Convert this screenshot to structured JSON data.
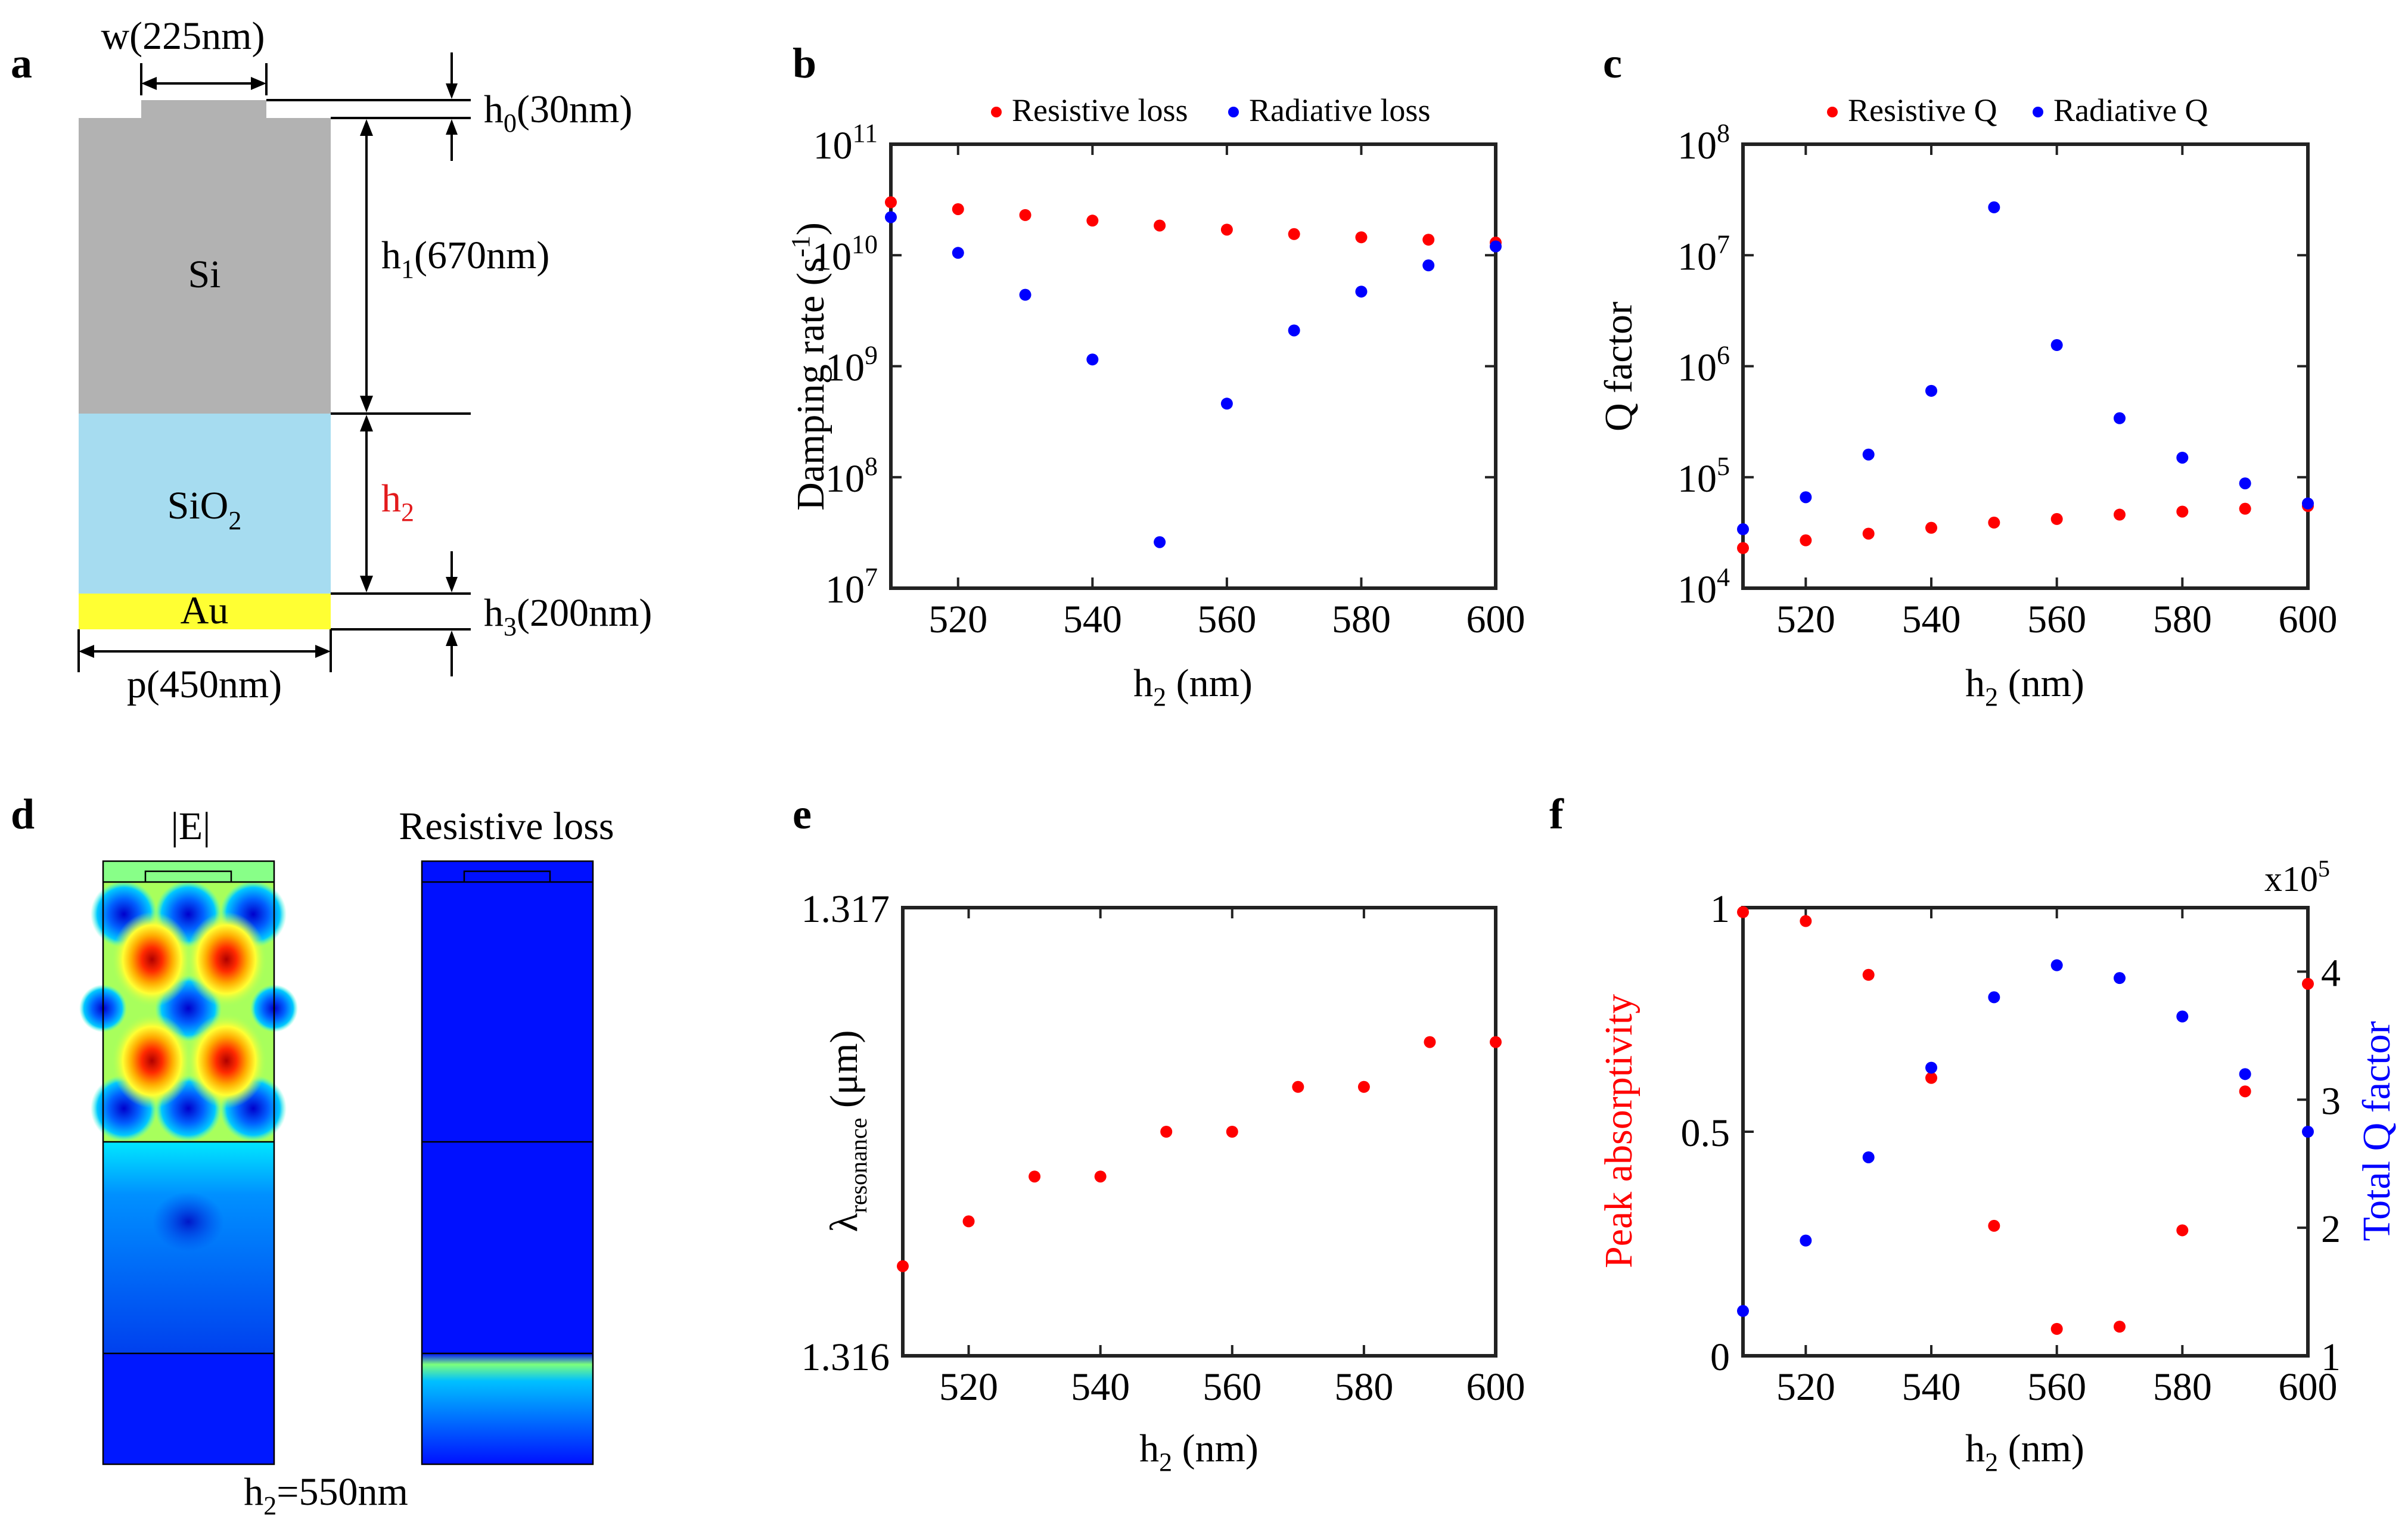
{
  "structure": {
    "panel_label": "a",
    "labels": {
      "w": "w(225nm)",
      "h0_main": "h",
      "h0_sub": "0",
      "h0_rest": "(30nm)",
      "h1_main": "h",
      "h1_sub": "1",
      "h1_rest": "(670nm)",
      "h2_main": "h",
      "h2_sub": "2",
      "h3_main": "h",
      "h3_sub": "3",
      "h3_rest": "(200nm)",
      "p": "p(450nm)",
      "si": "Si",
      "sio2_main": "SiO",
      "sio2_sub": "2",
      "au": "Au"
    },
    "colors": {
      "si": "#b2b2b2",
      "sio2": "#a6dcf0",
      "au": "#ffff33",
      "h2_text": "#e31a1c"
    }
  },
  "field_maps": {
    "panel_label": "d",
    "left_title": "|E|",
    "right_title": "Resistive loss",
    "caption_main": "h",
    "caption_sub": "2",
    "caption_rest": "=550nm"
  },
  "chart_data": [
    {
      "id": "b",
      "panel_label": "b",
      "type": "scatter",
      "yscale": "log",
      "xlim": [
        510,
        600
      ],
      "ylim_exp": [
        7,
        11
      ],
      "xticks": [
        520,
        540,
        560,
        580,
        600
      ],
      "ytick_base": "10",
      "ytick_exps": [
        "7",
        "8",
        "9",
        "10",
        "11"
      ],
      "xlabel_main": "h",
      "xlabel_sub": "2",
      "xlabel_rest": " (nm)",
      "ylabel_main": "Damping rate (s",
      "ylabel_sup": "-1",
      "ylabel_rest": ")",
      "legend": [
        {
          "label": "Resistive loss",
          "color": "#ff0000"
        },
        {
          "label": "Radiative loss",
          "color": "#0000ff"
        }
      ],
      "series": [
        {
          "name": "Resistive loss",
          "color": "#ff0000",
          "x": [
            510,
            520,
            530,
            540,
            550,
            560,
            570,
            580,
            590,
            600
          ],
          "y": [
            30000000000.0,
            26000000000.0,
            23000000000.0,
            20500000000.0,
            18500000000.0,
            17000000000.0,
            15500000000.0,
            14500000000.0,
            13800000000.0,
            13000000000.0
          ]
        },
        {
          "name": "Radiative loss",
          "color": "#0000ff",
          "x": [
            510,
            520,
            530,
            540,
            550,
            560,
            570,
            580,
            590,
            600
          ],
          "y": [
            22000000000.0,
            10500000000.0,
            4400000000.0,
            1150000000.0,
            26000000.0,
            460000000.0,
            2100000000.0,
            4700000000.0,
            8100000000.0,
            12000000000.0
          ]
        }
      ]
    },
    {
      "id": "c",
      "panel_label": "c",
      "type": "scatter",
      "yscale": "log",
      "xlim": [
        510,
        600
      ],
      "ylim_exp": [
        4,
        8
      ],
      "xticks": [
        520,
        540,
        560,
        580,
        600
      ],
      "ytick_base": "10",
      "ytick_exps": [
        "4",
        "5",
        "6",
        "7",
        "8"
      ],
      "xlabel_main": "h",
      "xlabel_sub": "2",
      "xlabel_rest": " (nm)",
      "ylabel": "Q factor",
      "legend": [
        {
          "label": "Resistive Q",
          "color": "#ff0000"
        },
        {
          "label": "Radiative Q",
          "color": "#0000ff"
        }
      ],
      "series": [
        {
          "name": "Resistive Q",
          "color": "#ff0000",
          "x": [
            510,
            520,
            530,
            540,
            550,
            560,
            570,
            580,
            590,
            600
          ],
          "y": [
            23000.0,
            27000.0,
            31000.0,
            35000.0,
            39000.0,
            42000.0,
            46000.0,
            49000.0,
            52000.0,
            55000.0
          ]
        },
        {
          "name": "Radiative Q",
          "color": "#0000ff",
          "x": [
            510,
            520,
            530,
            540,
            550,
            560,
            570,
            580,
            590,
            600
          ],
          "y": [
            34000.0,
            66000.0,
            160000.0,
            600000.0,
            27000000.0,
            1550000.0,
            340000.0,
            150000.0,
            88000.0,
            58000.0
          ]
        }
      ]
    },
    {
      "id": "e",
      "panel_label": "e",
      "type": "scatter",
      "xlim": [
        510,
        600
      ],
      "ylim": [
        1.316,
        1.317
      ],
      "xticks": [
        520,
        540,
        560,
        580,
        600
      ],
      "yticks": [
        "1.316",
        "1.317"
      ],
      "xlabel_main": "h",
      "xlabel_sub": "2",
      "xlabel_rest": " (nm)",
      "ylabel_main": "λ",
      "ylabel_sub": "resonance",
      "ylabel_rest": " (μm)",
      "series": [
        {
          "name": "resonance",
          "color": "#ff0000",
          "x": [
            510,
            520,
            530,
            540,
            550,
            560,
            570,
            580,
            590,
            600
          ],
          "y": [
            1.3162,
            1.3163,
            1.3164,
            1.3164,
            1.3165,
            1.3165,
            1.3166,
            1.3166,
            1.3167,
            1.3167
          ]
        }
      ]
    },
    {
      "id": "f",
      "panel_label": "f",
      "type": "scatter",
      "dual_axis": true,
      "xlim": [
        510,
        600
      ],
      "ylim": [
        0,
        1
      ],
      "ylim_right": [
        1,
        4.5
      ],
      "xticks": [
        520,
        540,
        560,
        580,
        600
      ],
      "yticks": [
        "0",
        "0.5",
        "1"
      ],
      "yticks_right": [
        "1",
        "2",
        "3",
        "4"
      ],
      "right_multiplier_main": "x10",
      "right_multiplier_sup": "5",
      "xlabel_main": "h",
      "xlabel_sub": "2",
      "xlabel_rest": " (nm)",
      "ylabel": "Peak absorptivity",
      "ylabel_color": "#ff0000",
      "ylabel_right": "Total Q factor",
      "ylabel_right_color": "#0000ff",
      "series": [
        {
          "name": "Peak absorptivity",
          "color": "#ff0000",
          "axis": "left",
          "x": [
            510,
            520,
            530,
            540,
            550,
            560,
            570,
            580,
            590,
            600
          ],
          "y": [
            0.99,
            0.97,
            0.85,
            0.62,
            0.29,
            0.06,
            0.065,
            0.28,
            0.59,
            0.83
          ]
        },
        {
          "name": "Total Q factor",
          "color": "#0000ff",
          "axis": "right",
          "x": [
            510,
            520,
            530,
            540,
            550,
            560,
            570,
            580,
            590,
            600
          ],
          "y": [
            1.35,
            1.9,
            2.55,
            3.25,
            3.8,
            4.05,
            3.95,
            3.65,
            3.2,
            2.75
          ]
        }
      ]
    }
  ]
}
